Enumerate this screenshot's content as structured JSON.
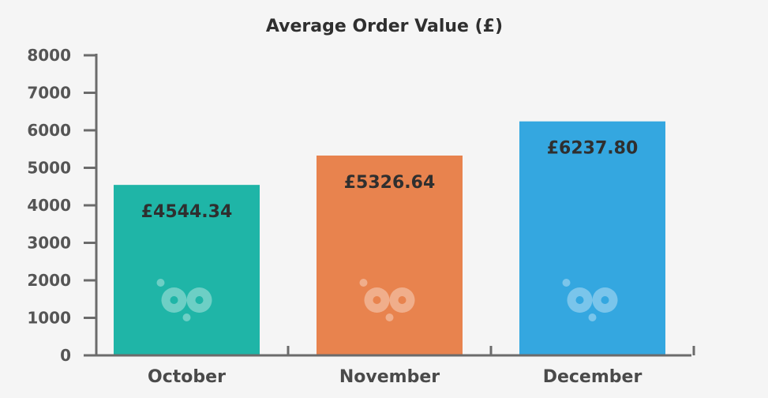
{
  "chart_data": {
    "type": "bar",
    "title": "Average Order Value (£)",
    "xlabel": "",
    "ylabel": "",
    "categories": [
      "October",
      "November",
      "December"
    ],
    "values": [
      4544.34,
      5326.64,
      6237.8
    ],
    "data_labels": [
      "£4544.34",
      "£5326.64",
      "£6237.80"
    ],
    "colors": [
      "#1fb5a7",
      "#e8834e",
      "#34a7e0"
    ],
    "ylim": [
      0,
      8000
    ],
    "yticks": [
      0,
      1000,
      2000,
      3000,
      4000,
      5000,
      6000,
      7000,
      8000
    ],
    "grid": false,
    "legend": "none",
    "watermark_icon": "bp-logo-icon"
  }
}
